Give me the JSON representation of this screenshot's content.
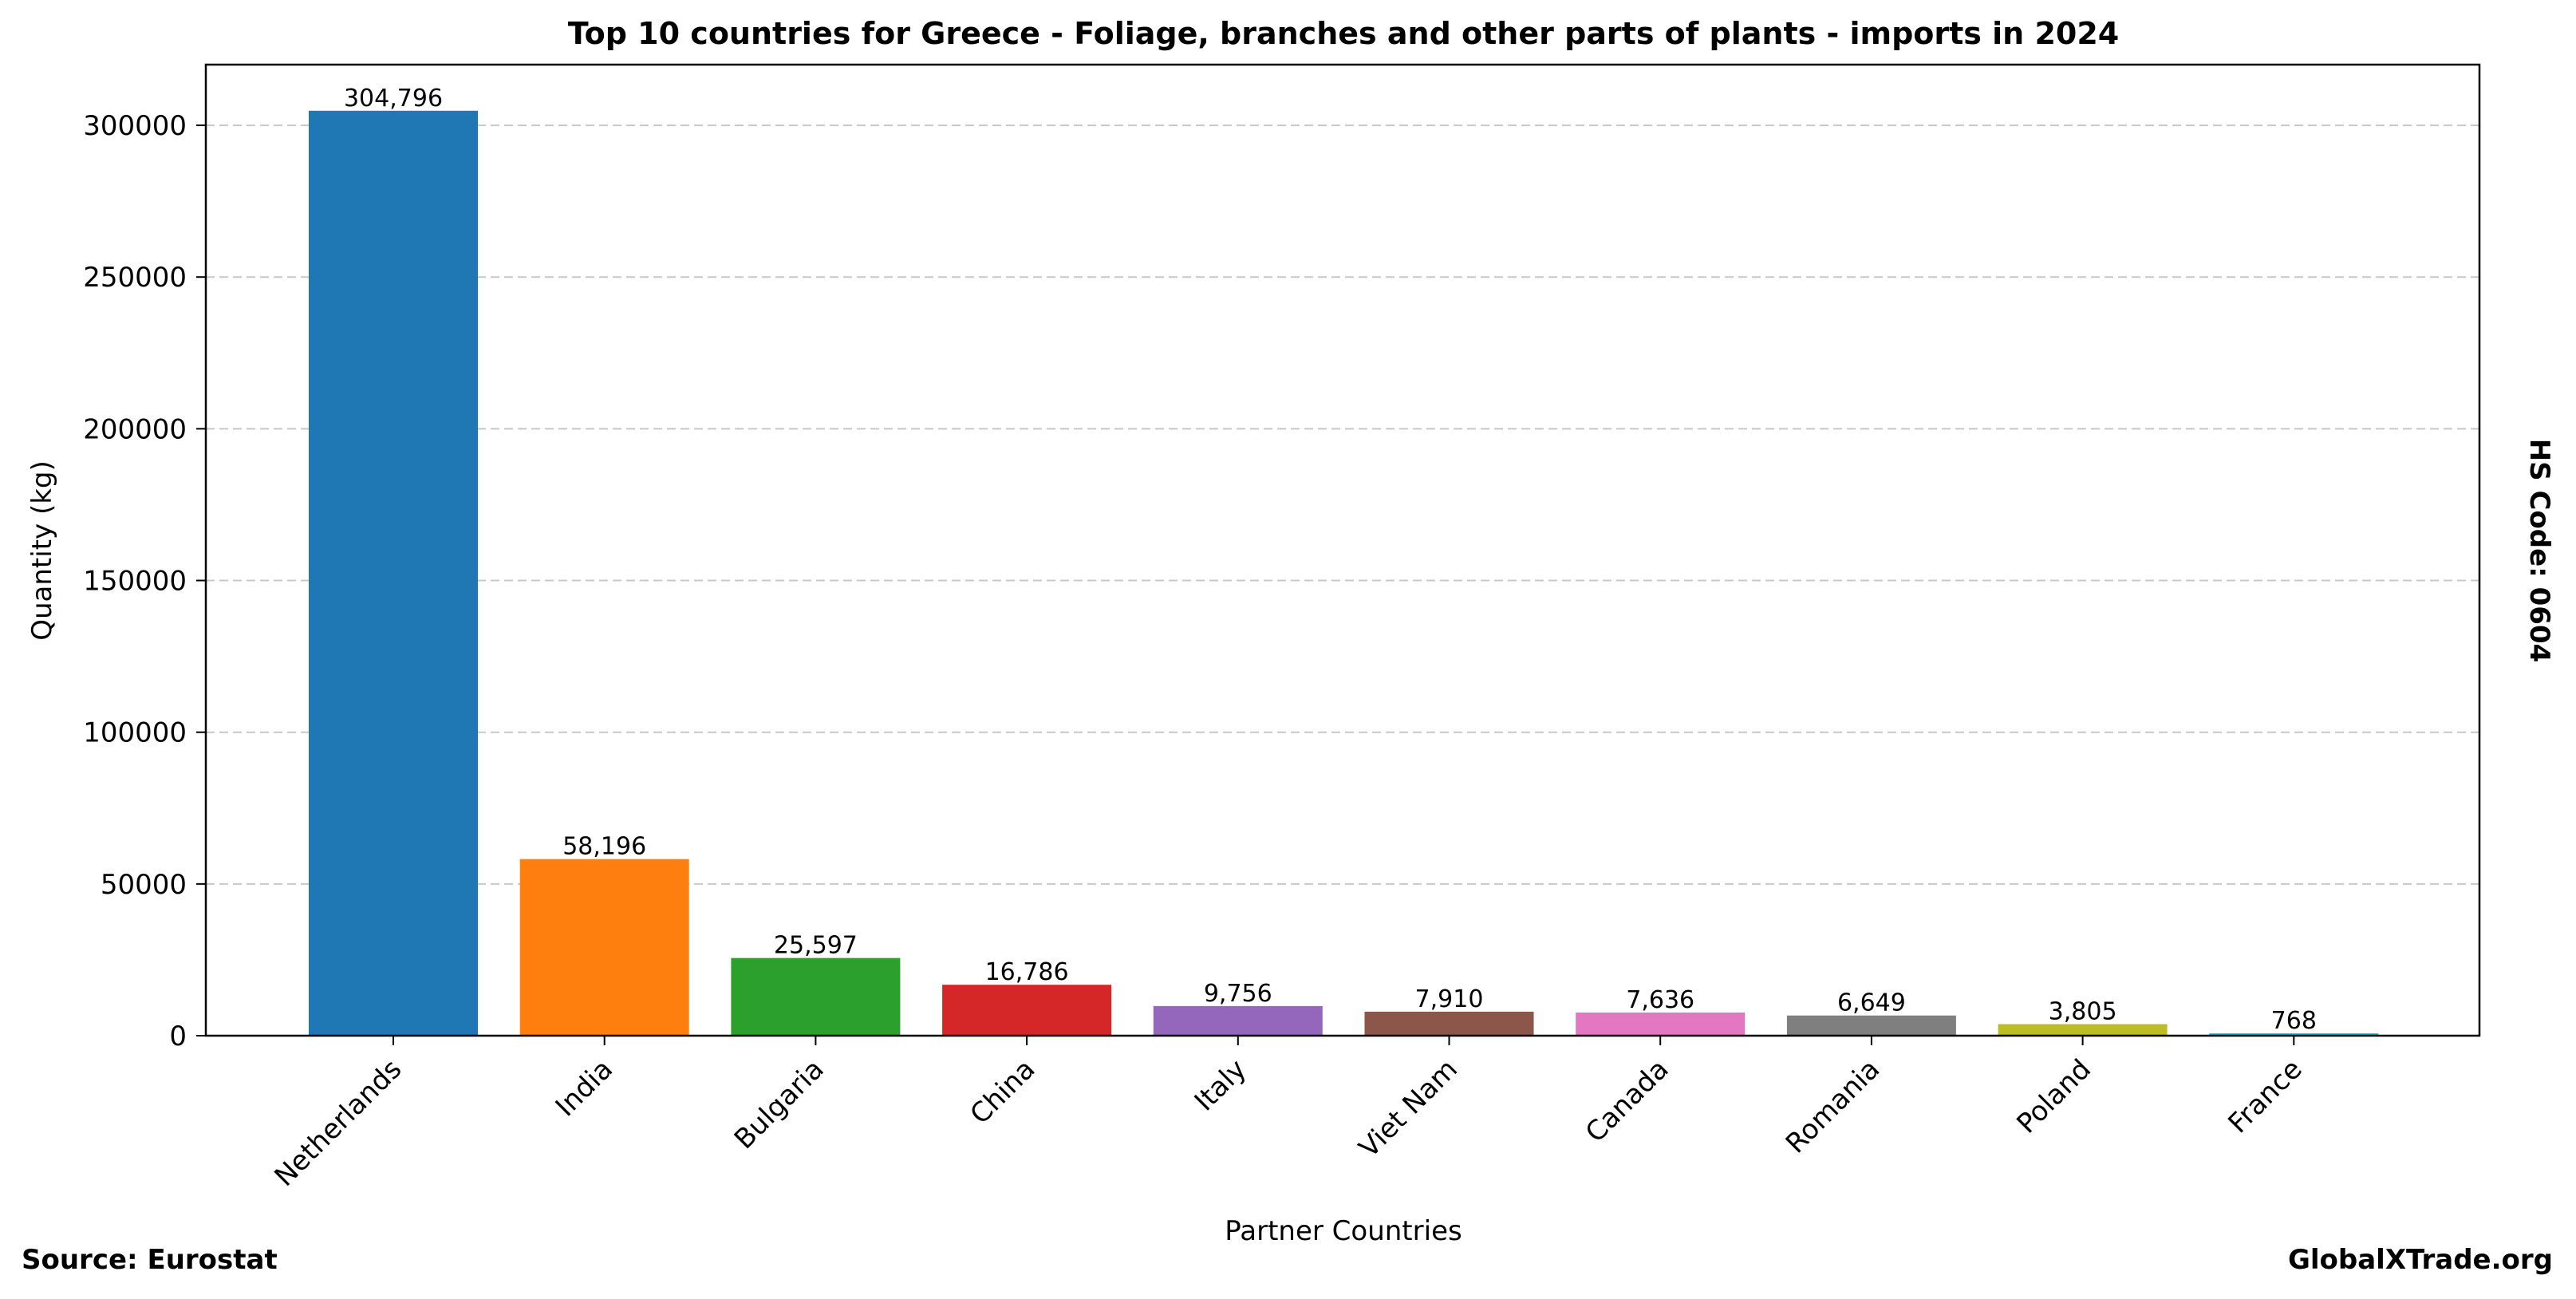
{
  "chart_data": {
    "type": "bar",
    "title": "Top 10 countries for Greece - Foliage, branches and other parts of plants - imports in 2024",
    "xlabel": "Partner Countries",
    "ylabel": "Quantity (kg)",
    "categories": [
      "Netherlands",
      "India",
      "Bulgaria",
      "China",
      "Italy",
      "Viet Nam",
      "Canada",
      "Romania",
      "Poland",
      "France"
    ],
    "values": [
      304796,
      58196,
      25597,
      16786,
      9756,
      7910,
      7636,
      6649,
      3805,
      768
    ],
    "value_labels": [
      "304,796",
      "58,196",
      "25,597",
      "16,786",
      "9,756",
      "7,910",
      "7,636",
      "6,649",
      "3,805",
      "768"
    ],
    "colors": [
      "#1f77b4",
      "#ff7f0e",
      "#2ca02c",
      "#d62728",
      "#9467bd",
      "#8c564b",
      "#e377c2",
      "#7f7f7f",
      "#bcbd22",
      "#17becf"
    ],
    "yticks": [
      0,
      50000,
      100000,
      150000,
      200000,
      250000,
      300000
    ],
    "ytick_labels": [
      "0",
      "50000",
      "100000",
      "150000",
      "200000",
      "250000",
      "300000"
    ],
    "ylim": [
      0,
      320000
    ],
    "grid": "horizontal-dashed",
    "legend": "none"
  },
  "annotations": {
    "hs_code": "HS Code: 0604",
    "source": "Source: Eurostat",
    "brand": "GlobalXTrade.org"
  }
}
